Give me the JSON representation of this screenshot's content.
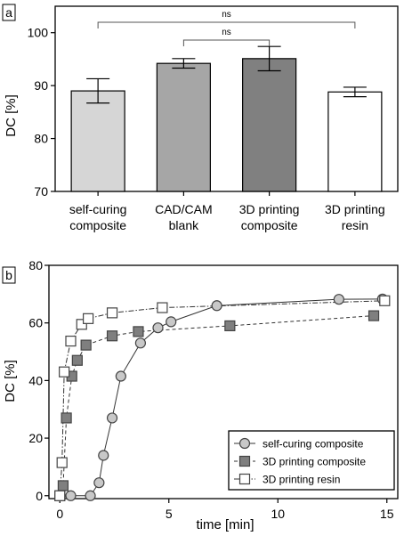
{
  "chart_data": [
    {
      "panel_label": "a",
      "type": "bar",
      "ylabel": "DC [%]",
      "ylim": [
        70,
        105
      ],
      "yticks": [
        70,
        80,
        90,
        100
      ],
      "categories": [
        [
          "self-curing",
          "composite"
        ],
        [
          "CAD/CAM",
          "blank"
        ],
        [
          "3D printing",
          "composite"
        ],
        [
          "3D printing",
          "resin"
        ]
      ],
      "values": [
        89.0,
        94.2,
        95.1,
        88.8
      ],
      "errors": [
        2.3,
        0.9,
        2.3,
        0.9
      ],
      "bar_colors": [
        "#d6d6d6",
        "#a6a6a6",
        "#808080",
        "#ffffff"
      ],
      "significance": [
        {
          "from": 0,
          "to": 3,
          "label": "ns"
        },
        {
          "from": 1,
          "to": 2,
          "label": "ns"
        }
      ]
    },
    {
      "panel_label": "b",
      "type": "line",
      "xlabel": "time [min]",
      "ylabel": "DC [%]",
      "xlim": [
        -0.5,
        15.5
      ],
      "ylim": [
        -1,
        80
      ],
      "xticks": [
        0,
        5,
        10,
        15
      ],
      "yticks": [
        0,
        20,
        40,
        60,
        80
      ],
      "legend_position": "bottom-right",
      "series": [
        {
          "name": "self-curing composite",
          "marker": "circle",
          "fill": "#c8c8c8",
          "line_style": "solid",
          "x": [
            0,
            0.5,
            1.4,
            1.8,
            2.0,
            2.4,
            2.8,
            3.7,
            4.5,
            5.1,
            7.2,
            12.8,
            14.8
          ],
          "y": [
            0,
            0,
            0,
            4.5,
            14,
            27,
            41.5,
            53,
            58.3,
            60.4,
            66,
            68.2,
            68.3
          ]
        },
        {
          "name": "3D printing composite",
          "marker": "square",
          "fill": "#7f7f7f",
          "line_style": "dashed",
          "x": [
            0,
            0.15,
            0.3,
            0.55,
            0.8,
            1.2,
            2.4,
            3.6,
            7.8,
            14.4
          ],
          "y": [
            0,
            3.5,
            27,
            41.5,
            47,
            52.3,
            55.5,
            57,
            59,
            62.5
          ]
        },
        {
          "name": "3D printing resin",
          "marker": "square",
          "fill": "#ffffff",
          "line_style": "dashdot",
          "x": [
            0,
            0.1,
            0.2,
            0.5,
            1.0,
            1.3,
            2.4,
            4.7,
            14.9
          ],
          "y": [
            0,
            11.5,
            43,
            53.7,
            59.5,
            61.5,
            63.5,
            65.3,
            67.7
          ]
        }
      ]
    }
  ]
}
